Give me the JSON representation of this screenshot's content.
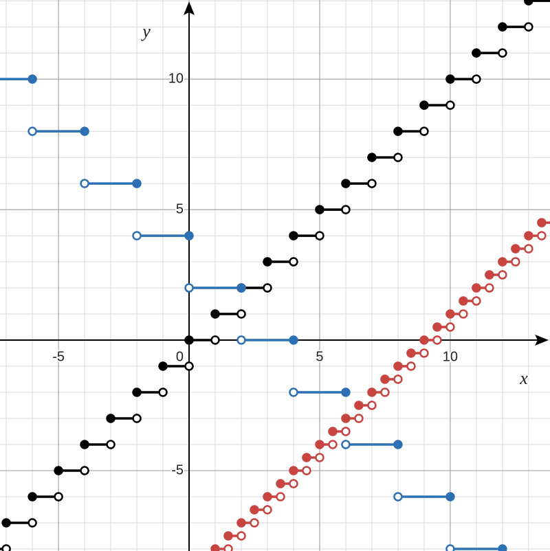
{
  "chart_data": {
    "type": "step",
    "x_axis_label": "x",
    "y_axis_label": "y",
    "xlim": [
      -7.24,
      13.82
    ],
    "ylim": [
      -8.08,
      13.03
    ],
    "xticks": [
      -5,
      0,
      5,
      10
    ],
    "yticks": [
      -5,
      5,
      10
    ],
    "grid": true,
    "minor_grid_step": 1,
    "series": [
      {
        "color": "#000000",
        "closed": "left",
        "x_start": [
          -8,
          -7,
          -6,
          -5,
          -4,
          -3,
          -2,
          -1,
          0,
          1,
          2,
          3,
          4,
          5,
          6,
          7,
          8,
          9,
          10,
          11,
          12,
          13
        ],
        "x_end": [
          -7,
          -6,
          -5,
          -4,
          -3,
          -2,
          -1,
          0,
          1,
          2,
          3,
          4,
          5,
          6,
          7,
          8,
          9,
          10,
          11,
          12,
          13,
          14
        ],
        "values": [
          -8,
          -7,
          -6,
          -5,
          -4,
          -3,
          -2,
          -1,
          0,
          1,
          2,
          3,
          4,
          5,
          6,
          7,
          8,
          9,
          10,
          11,
          12,
          13
        ]
      },
      {
        "color": "#2d70b3",
        "closed": "right",
        "x_start": [
          -8,
          -6,
          -4,
          -2,
          0,
          2,
          4,
          6,
          8,
          10
        ],
        "x_end": [
          -6,
          -4,
          -2,
          0,
          2,
          4,
          6,
          8,
          10,
          12
        ],
        "values": [
          10,
          8,
          6,
          4,
          2,
          0,
          -2,
          -4,
          -6,
          -8
        ]
      },
      {
        "color": "#c74440",
        "closed": "left",
        "x_start": [
          1,
          1.5,
          2,
          2.5,
          3,
          3.5,
          4,
          4.5,
          5,
          5.5,
          6,
          6.5,
          7,
          7.5,
          8,
          8.5,
          9,
          9.5,
          10,
          10.5,
          11,
          11.5,
          12,
          12.5,
          13,
          13.5
        ],
        "x_end": [
          1.5,
          2,
          2.5,
          3,
          3.5,
          4,
          4.5,
          5,
          5.5,
          6,
          6.5,
          7,
          7.5,
          8,
          8.5,
          9,
          9.5,
          10,
          10.5,
          11,
          11.5,
          12,
          12.5,
          13,
          13.5,
          14
        ],
        "values": [
          -8,
          -7.5,
          -7,
          -6.5,
          -6,
          -5.5,
          -5,
          -4.5,
          -4,
          -3.5,
          -3,
          -2.5,
          -2,
          -1.5,
          -1,
          -0.5,
          0,
          0.5,
          1,
          1.5,
          2,
          2.5,
          3,
          3.5,
          4,
          4.5
        ]
      }
    ]
  }
}
